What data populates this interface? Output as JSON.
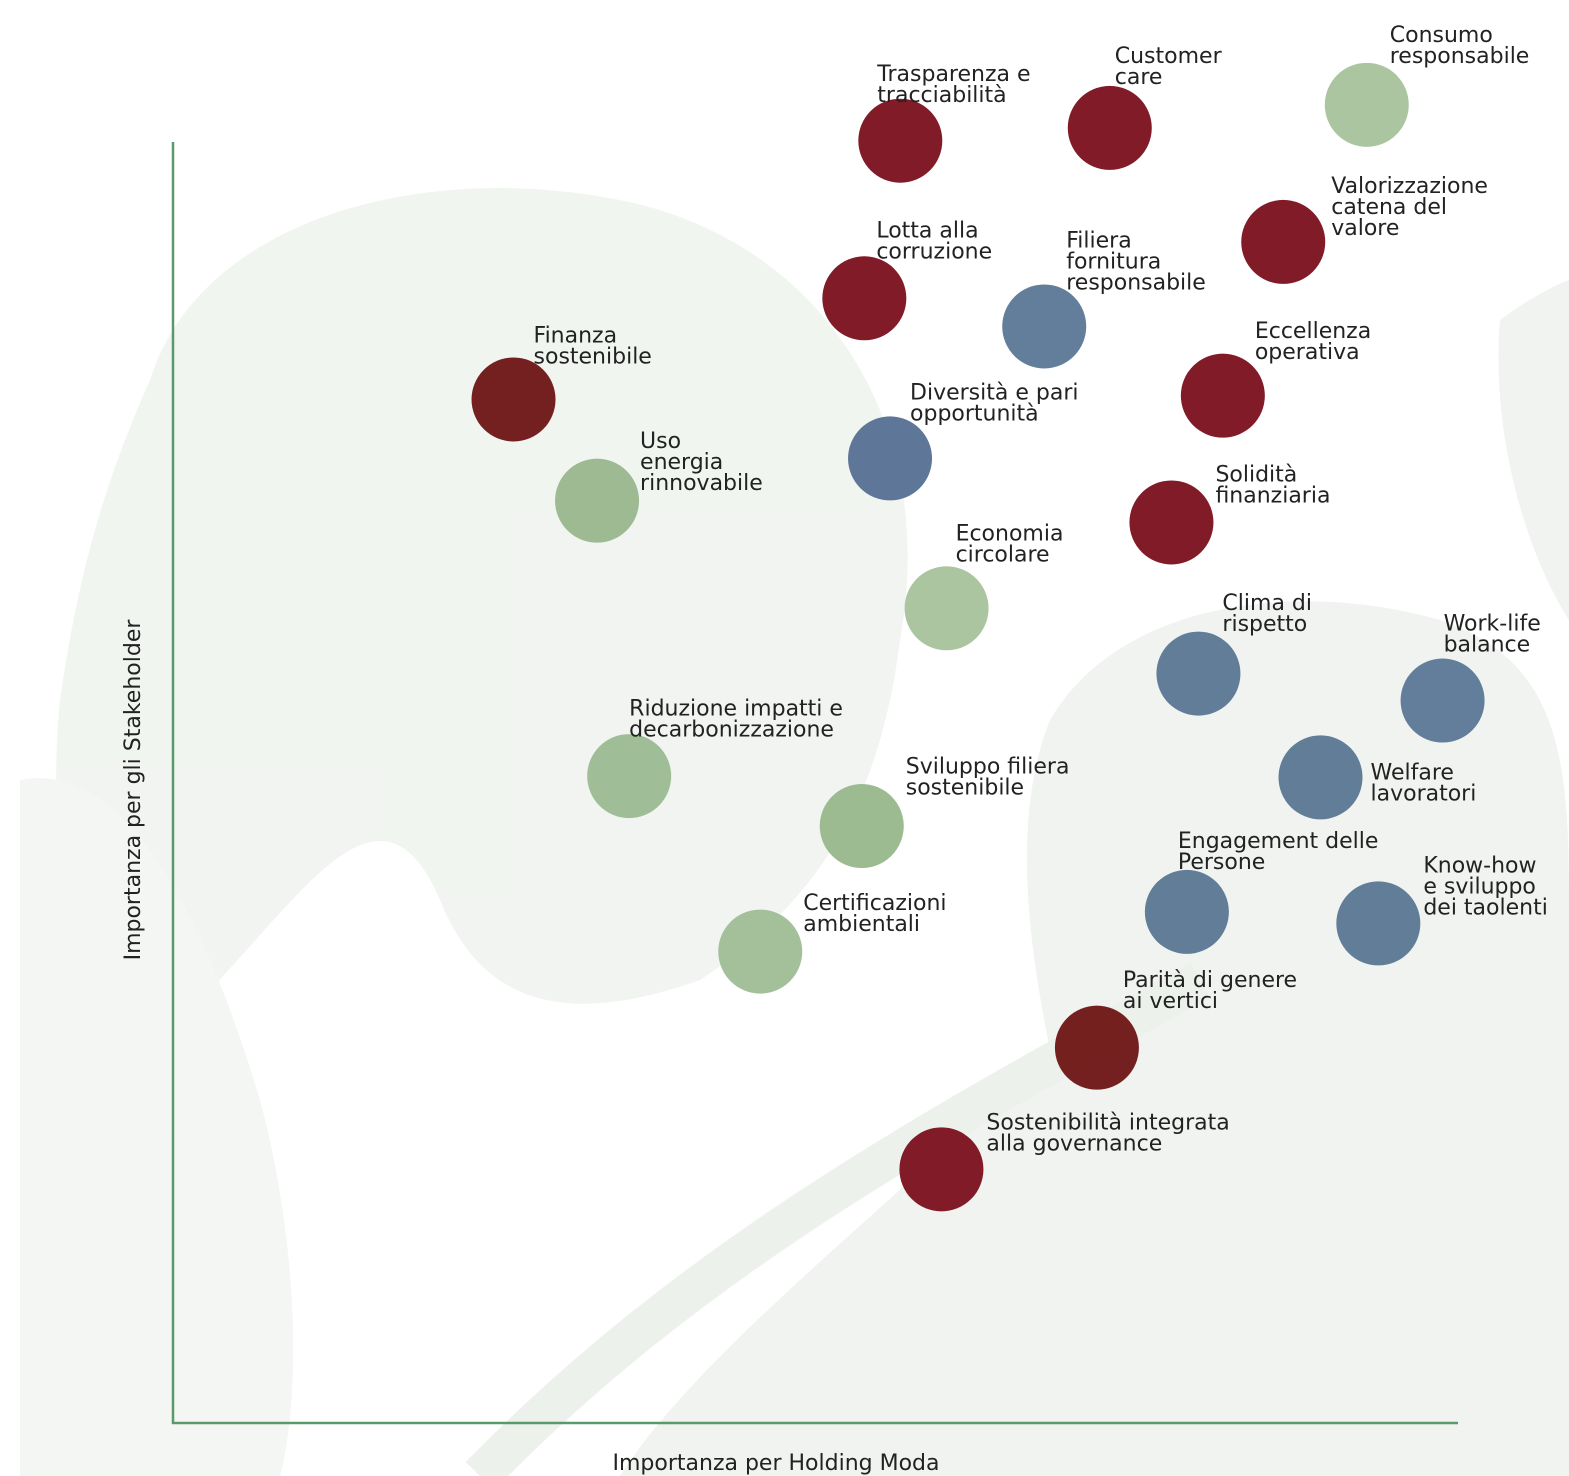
{
  "chart_data": {
    "type": "scatter",
    "xlabel": "Importanza per Holding Moda",
    "ylabel": "Importanza per gli Stakeholder",
    "xlim": [
      0,
      100
    ],
    "ylim": [
      0,
      100
    ],
    "labels": [
      [
        "Trasparenza e",
        "tracciabilità"
      ],
      [
        "Customer",
        "care"
      ],
      [
        "Consumo",
        "responsabile"
      ],
      [
        "Valorizzazione",
        "catena del",
        "valore"
      ],
      [
        "Lotta alla",
        "corruzione"
      ],
      [
        "Filiera",
        "fornitura",
        "responsabile"
      ],
      [
        "Eccellenza",
        "operativa"
      ],
      [
        "Finanza",
        "sostenibile"
      ],
      [
        "Diversità e pari",
        "opportunità"
      ],
      [
        "Uso",
        "energia",
        "rinnovabile"
      ],
      [
        "Solidità",
        "finanziaria"
      ],
      [
        "Economia",
        "circolare"
      ],
      [
        "Clima di",
        "rispetto"
      ],
      [
        "Work-life",
        "balance"
      ],
      [
        "Welfare",
        "lavoratori"
      ],
      [
        "Riduzione impatti e",
        "decarbonizzazione"
      ],
      [
        "Sviluppo filiera",
        "sostenibile"
      ],
      [
        "Engagement delle",
        "Persone"
      ],
      [
        "Know-how",
        "e sviluppo",
        "dei taolenti"
      ],
      [
        "Certificazioni",
        "ambientali"
      ],
      [
        "Parità di genere",
        "ai vertici"
      ],
      [
        "Sostenibilità integrata",
        "alla governance"
      ]
    ],
    "x": [
      56.6,
      72.9,
      92.9,
      86.4,
      53.8,
      67.8,
      81.7,
      26.5,
      55.8,
      33.0,
      77.7,
      60.2,
      79.8,
      98.8,
      89.3,
      35.5,
      53.6,
      78.9,
      93.8,
      45.7,
      71.9,
      59.8
    ],
    "values": [
      100.1,
      101.1,
      102.9,
      92.2,
      87.8,
      85.6,
      80.2,
      79.9,
      75.3,
      72.0,
      70.3,
      63.6,
      58.5,
      56.4,
      50.4,
      50.5,
      46.6,
      39.9,
      39.0,
      36.8,
      29.3,
      19.8
    ],
    "colors": [
      "#7a0f1c",
      "#7a0f1c",
      "#a5c29b",
      "#7a0f1c",
      "#7a0f1c",
      "#5a7795",
      "#7a0f1c",
      "#6e1414",
      "#556f92",
      "#98b68d",
      "#7a0f1c",
      "#a5c29b",
      "#587692",
      "#5a7795",
      "#587692",
      "#9ab990",
      "#97b78b",
      "#587692",
      "#587692",
      "#9fbd95",
      "#6e1414",
      "#7a0f1c"
    ]
  }
}
